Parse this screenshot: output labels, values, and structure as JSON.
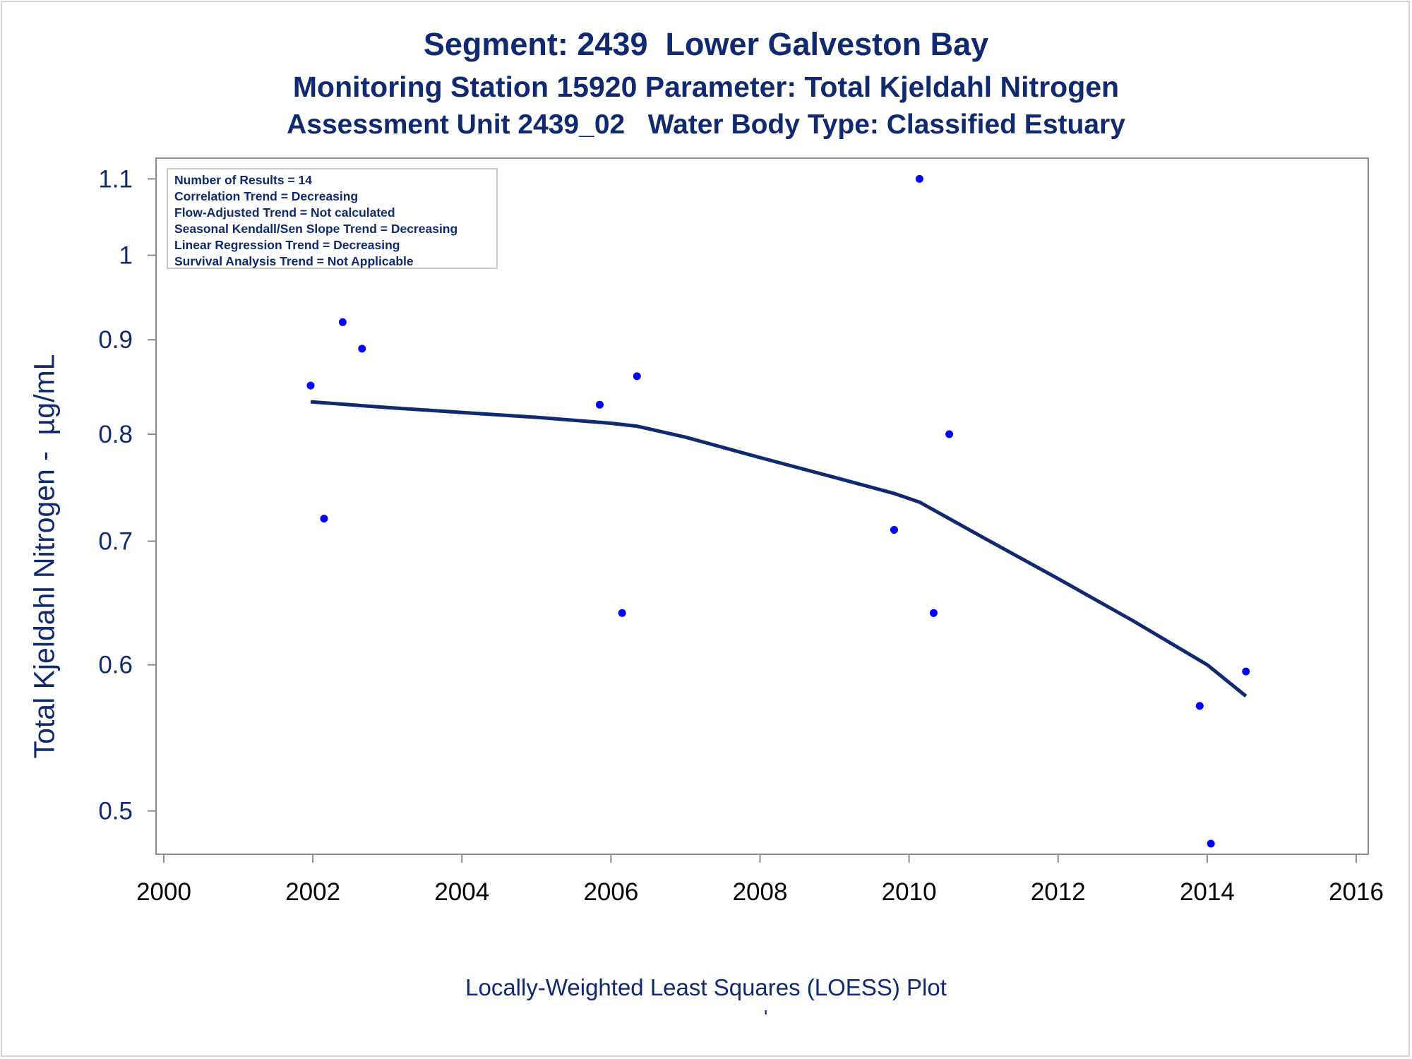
{
  "titles": {
    "line1": "Segment: 2439  Lower Galveston Bay",
    "line2": "Monitoring Station 15920 Parameter: Total Kjeldahl Nitrogen",
    "line3": "Assessment Unit 2439_02   Water Body Type: Classified Estuary"
  },
  "footnote": "Locally-Weighted Least Squares (LOESS) Plot",
  "footnote_mark": "'",
  "stats_box": [
    "Number of Results = 14",
    "Correlation Trend = Decreasing",
    "Flow-Adjusted Trend = Not calculated",
    "Seasonal Kendall/Sen Slope Trend = Decreasing",
    "Linear Regression Trend = Decreasing",
    "Survival Analysis Trend = Not Applicable"
  ],
  "colors": {
    "text": "#0f2a6e",
    "points": "#0000ff",
    "loess": "#0f2a6e",
    "axis": "#8c8c8c"
  },
  "chart_data": {
    "type": "scatter",
    "title": "Segment: 2439  Lower Galveston Bay",
    "xlabel": "",
    "ylabel": "Total Kjeldahl Nitrogen -  µg/mL",
    "yscale": "log",
    "xlim": [
      2000,
      2016
    ],
    "ylim": [
      0.48,
      1.115
    ],
    "xticks": [
      2000,
      2002,
      2004,
      2006,
      2008,
      2010,
      2012,
      2014,
      2016
    ],
    "yticks": [
      0.5,
      0.6,
      0.7,
      0.8,
      0.9,
      1,
      1.1
    ],
    "grid": false,
    "legend": "top-left",
    "series": [
      {
        "type": "scatter",
        "x": [
          2001.97,
          2002.15,
          2002.4,
          2002.66,
          2005.85,
          2006.15,
          2006.35,
          2009.8,
          2010.14,
          2010.33,
          2010.54,
          2013.9,
          2014.05,
          2014.52
        ],
        "y": [
          0.85,
          0.72,
          0.92,
          0.89,
          0.83,
          0.64,
          0.86,
          0.71,
          1.1,
          0.64,
          0.8,
          0.57,
          0.48,
          0.595
        ]
      },
      {
        "type": "line",
        "x": [
          2001.97,
          2003.0,
          2004.0,
          2005.0,
          2006.0,
          2006.35,
          2007.0,
          2008.0,
          2009.0,
          2009.8,
          2010.14,
          2011.0,
          2012.0,
          2013.0,
          2014.0,
          2014.52
        ],
        "y": [
          0.833,
          0.827,
          0.822,
          0.817,
          0.811,
          0.808,
          0.797,
          0.777,
          0.758,
          0.743,
          0.735,
          0.703,
          0.668,
          0.634,
          0.6,
          0.577
        ]
      }
    ]
  }
}
